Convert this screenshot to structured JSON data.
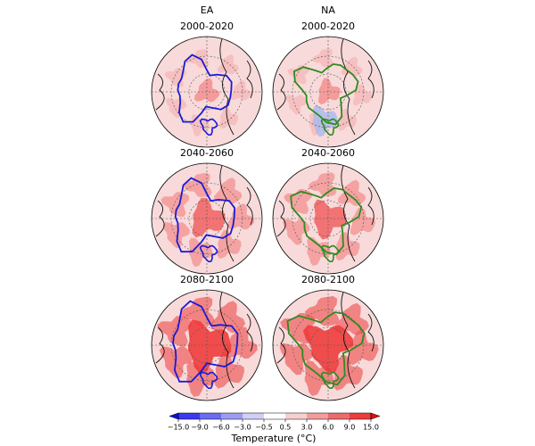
{
  "columns": [
    {
      "title": "EA",
      "contour_color": "#1a1ad6",
      "panels": [
        "2000-2020",
        "2040-2060",
        "2080-2100"
      ]
    },
    {
      "title": "NA",
      "contour_color": "#2e8b1e",
      "panels": [
        "2000-2020",
        "2040-2060",
        "2080-2100"
      ]
    }
  ],
  "colorbar": {
    "label": "Temperature (°C)",
    "ticks": [
      {
        "value": -15,
        "label": "−15.0"
      },
      {
        "value": -9,
        "label": "−9.0"
      },
      {
        "value": -6,
        "label": "−6.0"
      },
      {
        "value": -3,
        "label": "−3.0"
      },
      {
        "value": -0.5,
        "label": "−0.5"
      },
      {
        "value": 0.5,
        "label": "0.5"
      },
      {
        "value": 3,
        "label": "3.0"
      },
      {
        "value": 6,
        "label": "6.0"
      },
      {
        "value": 9,
        "label": "9.0"
      },
      {
        "value": 15,
        "label": "15.0"
      }
    ],
    "colors": [
      "#3a3af2",
      "#6a6af2",
      "#9c9cf2",
      "#cfcff7",
      "#ffffff",
      "#f7cfcf",
      "#f29c9c",
      "#ef6b6b",
      "#ee3c3c"
    ],
    "under_color": "#1010e0",
    "over_color": "#e01010"
  }
}
